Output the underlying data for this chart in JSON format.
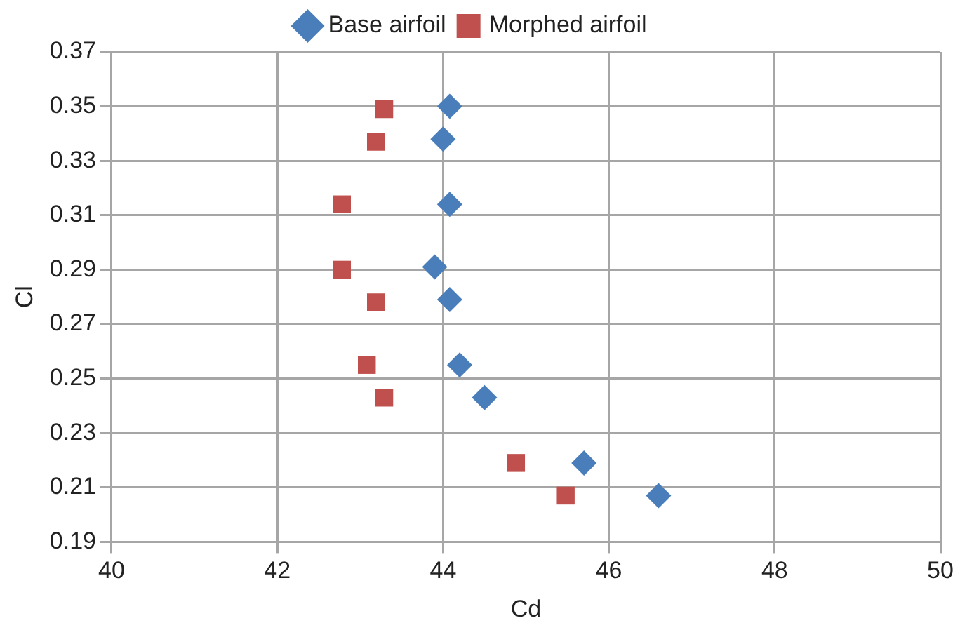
{
  "chart_data": {
    "type": "scatter",
    "xlabel": "Cd",
    "ylabel": "Cl",
    "xlim": [
      40,
      50
    ],
    "xticks": [
      40,
      42,
      44,
      46,
      48,
      50
    ],
    "ylim": [
      0.19,
      0.37
    ],
    "yticks": [
      0.19,
      0.21,
      0.23,
      0.25,
      0.27,
      0.29,
      0.31,
      0.33,
      0.35,
      0.37
    ],
    "grid": true,
    "legend": "top",
    "series": [
      {
        "name": "Base airfoil",
        "color": "#4a7ebb",
        "marker": "diamond",
        "x": [
          44.08,
          44.0,
          44.08,
          43.9,
          44.08,
          44.2,
          44.5,
          45.7,
          46.6
        ],
        "values": [
          0.35,
          0.338,
          0.314,
          0.291,
          0.279,
          0.255,
          0.243,
          0.219,
          0.207
        ]
      },
      {
        "name": "Morphed airfoil",
        "color": "#c0504d",
        "marker": "square",
        "x": [
          43.29,
          43.19,
          42.78,
          42.78,
          43.19,
          43.08,
          43.29,
          44.88,
          45.48
        ],
        "values": [
          0.349,
          0.337,
          0.314,
          0.29,
          0.278,
          0.255,
          0.243,
          0.219,
          0.207
        ]
      }
    ]
  }
}
